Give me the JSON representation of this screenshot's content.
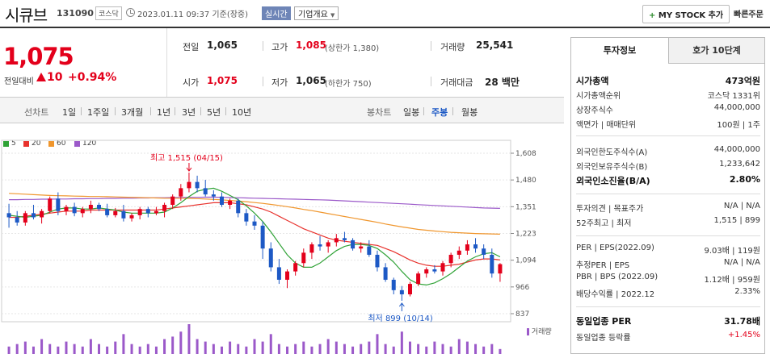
{
  "header": {
    "name": "시큐브",
    "code": "131090",
    "market": "코스닥",
    "datetime": "2023.01.11 09:37 기준(장중)",
    "realtime_label": "실시간",
    "company_info_label": "기업개요",
    "mystock_label": "MY STOCK 추가",
    "quick_order_label": "빠른주문"
  },
  "price": {
    "current": "1,075",
    "change_label": "전일대비",
    "change_amount": "10",
    "change_rate": "+0.94%"
  },
  "summary": {
    "prev_close_label": "전일",
    "prev_close": "1,065",
    "high_label": "고가",
    "high": "1,085",
    "upper_limit": "(상한가 1,380)",
    "volume_label": "거래량",
    "volume": "25,541",
    "open_label": "시가",
    "open": "1,075",
    "low_label": "저가",
    "low": "1,065",
    "lower_limit": "(하한가 750)",
    "amount_label": "거래대금",
    "amount": "28 백만"
  },
  "period_tabs": {
    "line_label": "선차트",
    "items": [
      "1일",
      "1주일",
      "3개월",
      "1년",
      "3년",
      "5년",
      "10년"
    ],
    "candle_label": "봉차트",
    "candle_items": [
      "일봉",
      "주봉",
      "월봉"
    ]
  },
  "legend": [
    {
      "label": "5",
      "color": "#2fa236"
    },
    {
      "label": "20",
      "color": "#e8322d"
    },
    {
      "label": "60",
      "color": "#f0962d"
    },
    {
      "label": "120",
      "color": "#9b59c9"
    }
  ],
  "chart_data": {
    "type": "candlestick",
    "y_ticks": [
      "1,608",
      "1,480",
      "1,351",
      "1,223",
      "1,094",
      "966",
      "837"
    ],
    "ylim": [
      837,
      1608
    ],
    "high_annotation": "최고 1,515 (04/15)",
    "low_annotation": "최저 899 (10/14)",
    "volume_label": "거래량",
    "up_color": "#e3001b",
    "down_color": "#1d59c5",
    "candles": [
      [
        1320,
        1365,
        1250,
        1300
      ],
      [
        1300,
        1330,
        1260,
        1275
      ],
      [
        1275,
        1330,
        1260,
        1320
      ],
      [
        1320,
        1360,
        1290,
        1300
      ],
      [
        1300,
        1340,
        1270,
        1330
      ],
      [
        1330,
        1400,
        1320,
        1390
      ],
      [
        1390,
        1420,
        1310,
        1330
      ],
      [
        1330,
        1360,
        1310,
        1350
      ],
      [
        1350,
        1370,
        1305,
        1320
      ],
      [
        1320,
        1350,
        1300,
        1340
      ],
      [
        1340,
        1380,
        1320,
        1360
      ],
      [
        1360,
        1370,
        1330,
        1340
      ],
      [
        1340,
        1365,
        1300,
        1310
      ],
      [
        1310,
        1345,
        1300,
        1330
      ],
      [
        1330,
        1360,
        1280,
        1295
      ],
      [
        1295,
        1320,
        1280,
        1310
      ],
      [
        1310,
        1350,
        1290,
        1340
      ],
      [
        1340,
        1350,
        1300,
        1320
      ],
      [
        1320,
        1350,
        1310,
        1330
      ],
      [
        1330,
        1370,
        1300,
        1360
      ],
      [
        1360,
        1410,
        1340,
        1400
      ],
      [
        1400,
        1460,
        1380,
        1440
      ],
      [
        1440,
        1515,
        1420,
        1470
      ],
      [
        1470,
        1500,
        1420,
        1440
      ],
      [
        1440,
        1480,
        1400,
        1410
      ],
      [
        1410,
        1430,
        1380,
        1400
      ],
      [
        1400,
        1420,
        1350,
        1360
      ],
      [
        1360,
        1390,
        1340,
        1380
      ],
      [
        1380,
        1390,
        1300,
        1320
      ],
      [
        1320,
        1340,
        1260,
        1280
      ],
      [
        1280,
        1310,
        1240,
        1260
      ],
      [
        1260,
        1280,
        1100,
        1150
      ],
      [
        1150,
        1180,
        1040,
        1060
      ],
      [
        1060,
        1100,
        980,
        1000
      ],
      [
        1000,
        1050,
        960,
        1040
      ],
      [
        1040,
        1090,
        1020,
        1080
      ],
      [
        1080,
        1150,
        1060,
        1130
      ],
      [
        1130,
        1180,
        1100,
        1170
      ],
      [
        1170,
        1210,
        1140,
        1160
      ],
      [
        1160,
        1190,
        1130,
        1180
      ],
      [
        1180,
        1220,
        1160,
        1200
      ],
      [
        1200,
        1230,
        1180,
        1190
      ],
      [
        1190,
        1200,
        1140,
        1150
      ],
      [
        1150,
        1180,
        1130,
        1160
      ],
      [
        1160,
        1190,
        1110,
        1120
      ],
      [
        1120,
        1140,
        1040,
        1060
      ],
      [
        1060,
        1080,
        990,
        1000
      ],
      [
        1000,
        1010,
        930,
        950
      ],
      [
        950,
        970,
        899,
        930
      ],
      [
        930,
        990,
        920,
        980
      ],
      [
        980,
        1040,
        970,
        1030
      ],
      [
        1030,
        1060,
        1010,
        1050
      ],
      [
        1050,
        1070,
        1030,
        1040
      ],
      [
        1040,
        1090,
        1020,
        1080
      ],
      [
        1080,
        1130,
        1060,
        1120
      ],
      [
        1120,
        1160,
        1100,
        1140
      ],
      [
        1140,
        1190,
        1120,
        1170
      ],
      [
        1170,
        1200,
        1130,
        1150
      ],
      [
        1150,
        1170,
        1100,
        1120
      ],
      [
        1120,
        1150,
        1010,
        1030
      ],
      [
        1030,
        1080,
        990,
        1075
      ]
    ],
    "ma5": [
      1310,
      1305,
      1300,
      1305,
      1310,
      1325,
      1340,
      1345,
      1345,
      1340,
      1340,
      1345,
      1340,
      1335,
      1325,
      1320,
      1320,
      1320,
      1320,
      1325,
      1345,
      1370,
      1400,
      1425,
      1435,
      1440,
      1425,
      1405,
      1385,
      1355,
      1320,
      1280,
      1230,
      1175,
      1120,
      1080,
      1060,
      1060,
      1080,
      1110,
      1140,
      1160,
      1170,
      1170,
      1165,
      1150,
      1120,
      1085,
      1040,
      1000,
      980,
      975,
      985,
      1005,
      1030,
      1060,
      1090,
      1110,
      1125,
      1130,
      1110
    ],
    "ma20": [
      1300,
      1300,
      1305,
      1310,
      1315,
      1320,
      1325,
      1330,
      1330,
      1330,
      1335,
      1335,
      1335,
      1335,
      1335,
      1335,
      1335,
      1335,
      1335,
      1340,
      1345,
      1350,
      1355,
      1360,
      1365,
      1370,
      1370,
      1370,
      1365,
      1360,
      1350,
      1340,
      1325,
      1305,
      1285,
      1265,
      1245,
      1230,
      1215,
      1200,
      1190,
      1185,
      1180,
      1175,
      1170,
      1165,
      1150,
      1135,
      1115,
      1095,
      1080,
      1070,
      1065,
      1065,
      1070,
      1075,
      1085,
      1095,
      1100,
      1100,
      1095
    ],
    "ma60": [
      1415,
      1413,
      1411,
      1409,
      1407,
      1405,
      1404,
      1403,
      1402,
      1401,
      1400,
      1400,
      1399,
      1398,
      1397,
      1396,
      1395,
      1394,
      1393,
      1392,
      1392,
      1392,
      1391,
      1390,
      1388,
      1386,
      1384,
      1381,
      1378,
      1375,
      1371,
      1367,
      1362,
      1357,
      1351,
      1345,
      1338,
      1332,
      1325,
      1318,
      1311,
      1304,
      1297,
      1290,
      1283,
      1276,
      1268,
      1261,
      1254,
      1248,
      1242,
      1238,
      1234,
      1231,
      1228,
      1226,
      1224,
      1222,
      1221,
      1220,
      1219
    ],
    "ma120": [
      1385,
      1385,
      1386,
      1386,
      1387,
      1387,
      1388,
      1388,
      1389,
      1389,
      1390,
      1390,
      1391,
      1391,
      1392,
      1392,
      1393,
      1393,
      1394,
      1394,
      1395,
      1395,
      1396,
      1396,
      1397,
      1397,
      1396,
      1395,
      1394,
      1393,
      1392,
      1391,
      1390,
      1389,
      1388,
      1387,
      1386,
      1385,
      1384,
      1383,
      1381,
      1379,
      1377,
      1375,
      1373,
      1371,
      1369,
      1367,
      1365,
      1363,
      1361,
      1359,
      1357,
      1355,
      1353,
      1351,
      1349,
      1347,
      1345,
      1344,
      1343
    ],
    "volume": [
      3,
      4,
      5,
      3,
      6,
      4,
      3,
      5,
      4,
      3,
      6,
      4,
      3,
      5,
      8,
      4,
      3,
      4,
      3,
      6,
      7,
      9,
      12,
      6,
      5,
      4,
      3,
      5,
      4,
      3,
      6,
      5,
      8,
      4,
      3,
      4,
      5,
      3,
      4,
      6,
      5,
      4,
      3,
      4,
      5,
      8,
      4,
      3,
      9,
      5,
      4,
      3,
      5,
      4,
      3,
      6,
      5,
      4,
      3,
      4,
      2
    ]
  },
  "right_panel": {
    "tabs": [
      "투자정보",
      "호가 10단계"
    ],
    "rows": [
      {
        "k": "시가총액",
        "v": "473억원",
        "strong": true
      },
      {
        "k": "시가총액순위",
        "v": "코스닥 1331위"
      },
      {
        "k": "상장주식수",
        "v": "44,000,000"
      },
      {
        "k": "액면가 | 매매단위",
        "v": "100원 | 1주"
      },
      {
        "k": "외국인한도주식수(A)",
        "v": "44,000,000"
      },
      {
        "k": "외국인보유주식수(B)",
        "v": "1,233,642"
      },
      {
        "k": "외국인소진율(B/A)",
        "v": "2.80%",
        "strong": true
      },
      {
        "k": "투자의견 | 목표주가",
        "v": "N/A | N/A"
      },
      {
        "k": "52주최고 | 최저",
        "v": "1,515 | 899"
      },
      {
        "k": "PER | EPS(2022.09)",
        "v": "9.03배 | 119원"
      },
      {
        "k": "추정PER | EPS",
        "v": "N/A | N/A"
      },
      {
        "k": "PBR | BPS (2022.09)",
        "v": "1.12배 | 959원"
      },
      {
        "k": "배당수익률 | 2022.12",
        "v": "2.33%"
      },
      {
        "k": "동일업종 PER",
        "v": "31.78배",
        "strong": true
      },
      {
        "k": "동일업종 등락률",
        "v": "+1.45%"
      }
    ]
  }
}
